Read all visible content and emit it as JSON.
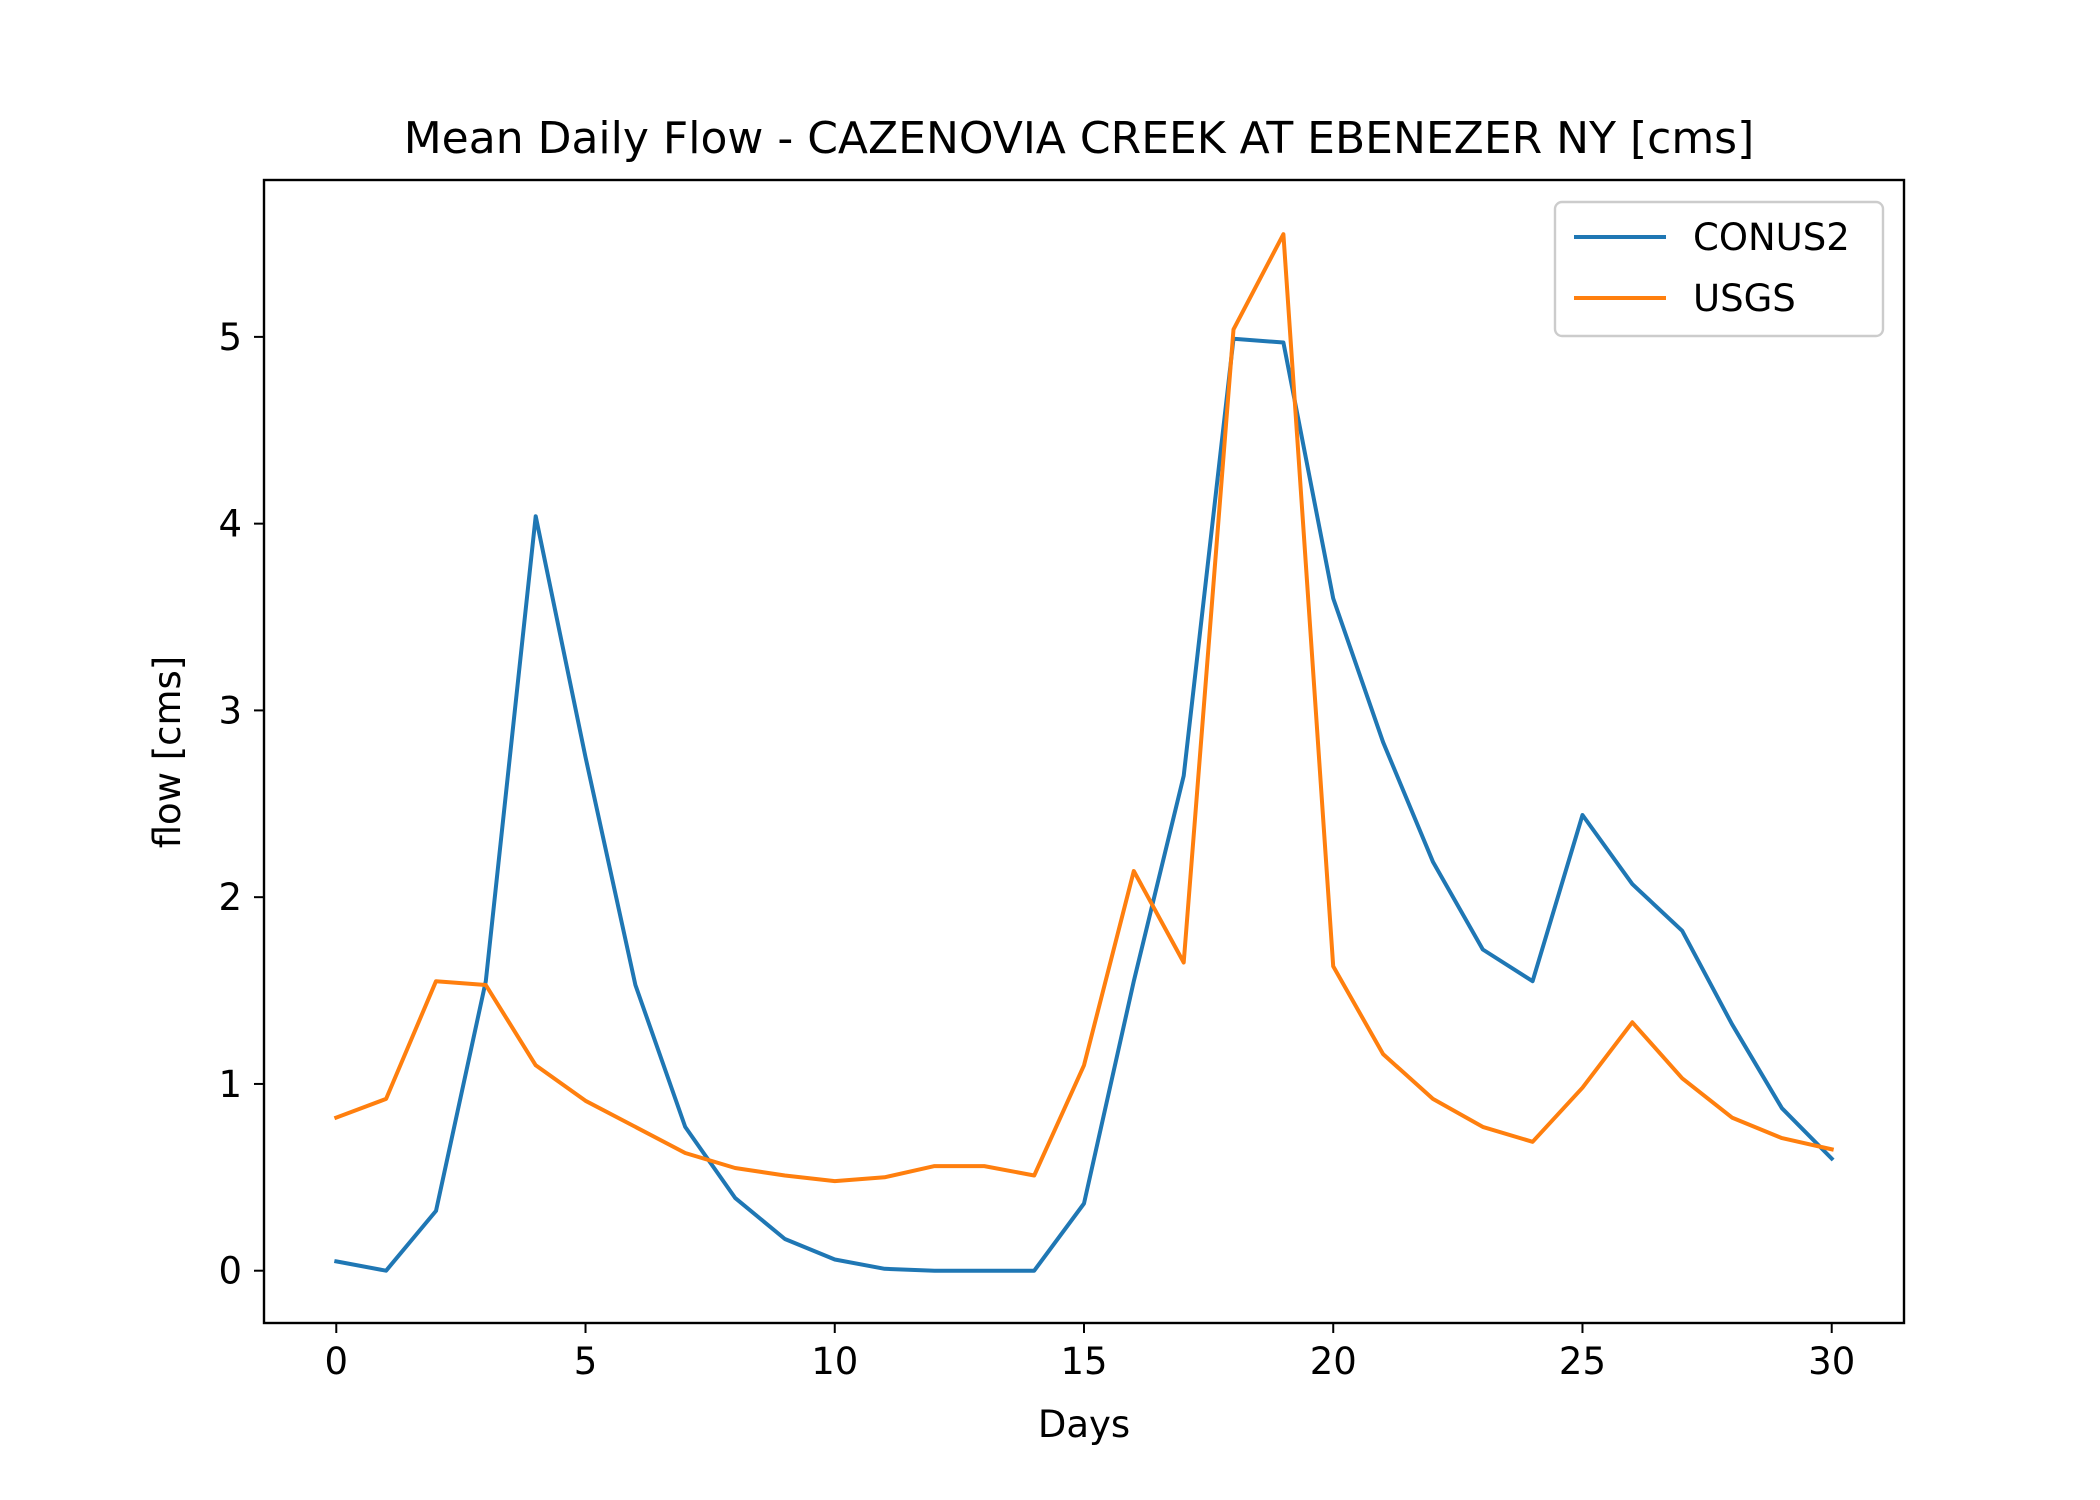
{
  "chart_data": {
    "type": "line",
    "title": "Mean Daily Flow - CAZENOVIA CREEK AT EBENEZER NY [cms]",
    "xlabel": "Days",
    "ylabel": "flow [cms]",
    "xlim": [
      -1.45,
      31.45
    ],
    "ylim": [
      -0.28,
      5.84
    ],
    "xticks": [
      "0",
      "5",
      "10",
      "15",
      "20",
      "25",
      "30"
    ],
    "yticks": [
      "0",
      "1",
      "2",
      "3",
      "4",
      "5"
    ],
    "grid": false,
    "legend": "upper right",
    "x": [
      0,
      1,
      2,
      3,
      4,
      5,
      6,
      7,
      8,
      9,
      10,
      11,
      12,
      13,
      14,
      15,
      16,
      17,
      18,
      19,
      20,
      21,
      22,
      23,
      24,
      25,
      26,
      27,
      28,
      29,
      30
    ],
    "series": [
      {
        "name": "CONUS2",
        "color": "#1f77b4",
        "values": [
          0.05,
          0.0,
          0.32,
          1.55,
          4.04,
          2.75,
          1.53,
          0.77,
          0.39,
          0.17,
          0.06,
          0.01,
          0.0,
          0.0,
          0.0,
          0.36,
          1.55,
          2.65,
          4.99,
          4.97,
          3.6,
          2.83,
          2.19,
          1.72,
          1.55,
          2.44,
          2.07,
          1.82,
          1.32,
          0.87,
          0.6
        ]
      },
      {
        "name": "USGS",
        "color": "#ff7f0e",
        "values": [
          0.82,
          0.92,
          1.55,
          1.53,
          1.1,
          0.91,
          0.77,
          0.63,
          0.55,
          0.51,
          0.48,
          0.5,
          0.56,
          0.56,
          0.51,
          1.1,
          2.14,
          1.65,
          5.04,
          5.55,
          1.63,
          1.16,
          0.92,
          0.77,
          0.69,
          0.98,
          1.33,
          1.03,
          0.82,
          0.71,
          0.65
        ]
      }
    ]
  }
}
